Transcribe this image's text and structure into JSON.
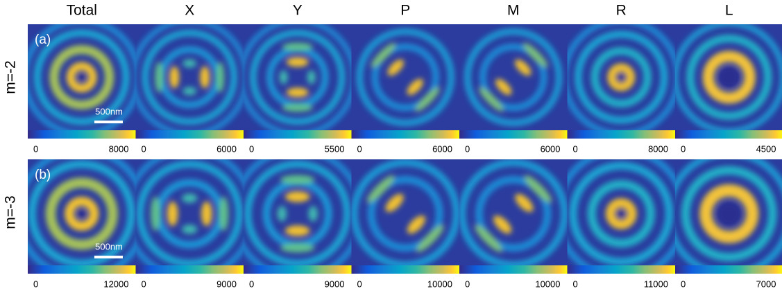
{
  "columns": [
    "Total",
    "X",
    "Y",
    "P",
    "M",
    "R",
    "L"
  ],
  "rows": [
    {
      "label": "m=-2",
      "panel_label": "(a)",
      "scale_bar": "500nm",
      "colorbars": [
        {
          "min": 0,
          "max": 8000
        },
        {
          "min": 0,
          "max": 6000
        },
        {
          "min": 0,
          "max": 5500
        },
        {
          "min": 0,
          "max": 6000
        },
        {
          "min": 0,
          "max": 6000
        },
        {
          "min": 0,
          "max": 8000
        },
        {
          "min": 0,
          "max": 4500
        }
      ]
    },
    {
      "label": "m=-3",
      "panel_label": "(b)",
      "scale_bar": "500nm",
      "colorbars": [
        {
          "min": 0,
          "max": 12000
        },
        {
          "min": 0,
          "max": 9000
        },
        {
          "min": 0,
          "max": 9000
        },
        {
          "min": 0,
          "max": 10000
        },
        {
          "min": 0,
          "max": 10000
        },
        {
          "min": 0,
          "max": 11000
        },
        {
          "min": 0,
          "max": 7000
        }
      ]
    }
  ]
}
